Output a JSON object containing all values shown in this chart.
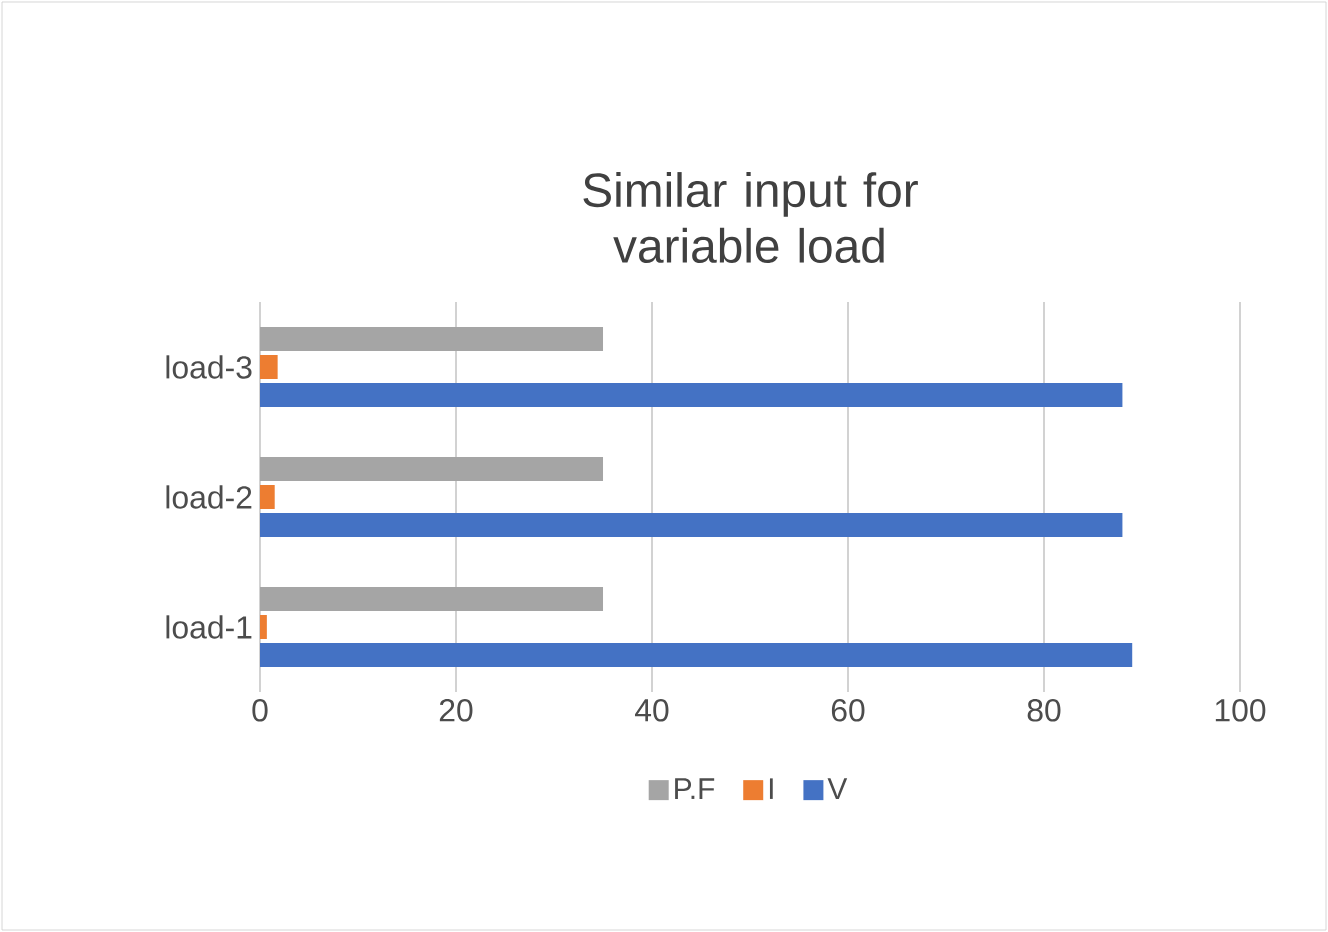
{
  "chart_data": {
    "type": "bar",
    "orientation": "horizontal",
    "title": "Similar input for variable load",
    "categories": [
      "load-3",
      "load-2",
      "load-1"
    ],
    "series": [
      {
        "name": "V",
        "color": "#4472c4",
        "values": [
          88,
          88,
          89
        ]
      },
      {
        "name": "I",
        "color": "#ed7d31",
        "values": [
          1.8,
          1.5,
          0.7
        ]
      },
      {
        "name": "P.F",
        "color": "#a5a5a5",
        "values": [
          35,
          35,
          35
        ]
      }
    ],
    "xlim": [
      0,
      100
    ],
    "xticks": [
      0,
      20,
      40,
      60,
      80,
      100
    ],
    "grid": "x",
    "legend": "bottom"
  }
}
